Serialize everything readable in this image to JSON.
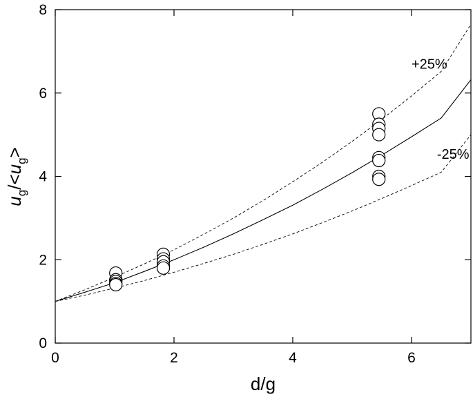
{
  "chart_data": {
    "type": "scatter",
    "title": "",
    "xlabel": "d/g",
    "ylabel": "u_g/<u_g>",
    "ylabel_parts": {
      "u1": "u",
      "sub1": "g",
      "mid": "/<",
      "u2": "u",
      "sub2": "g",
      "end": ">"
    },
    "xlim": [
      0,
      7
    ],
    "ylim": [
      0,
      8
    ],
    "xticks": [
      0,
      2,
      4,
      6
    ],
    "yticks": [
      0,
      2,
      4,
      6,
      8
    ],
    "grid": false,
    "legend": "none",
    "series": [
      {
        "marker": "open-circle",
        "points": [
          {
            "x": 1.02,
            "y": 1.68
          },
          {
            "x": 1.02,
            "y": 1.52
          },
          {
            "x": 1.02,
            "y": 1.48
          },
          {
            "x": 1.02,
            "y": 1.43
          },
          {
            "x": 1.02,
            "y": 1.4
          },
          {
            "x": 1.82,
            "y": 2.13
          },
          {
            "x": 1.82,
            "y": 2.02
          },
          {
            "x": 1.82,
            "y": 1.95
          },
          {
            "x": 1.82,
            "y": 1.85
          },
          {
            "x": 1.82,
            "y": 1.8
          },
          {
            "x": 5.45,
            "y": 5.5
          },
          {
            "x": 5.45,
            "y": 5.25
          },
          {
            "x": 5.45,
            "y": 5.15
          },
          {
            "x": 5.45,
            "y": 5.0
          },
          {
            "x": 5.45,
            "y": 4.45
          },
          {
            "x": 5.45,
            "y": 4.38
          },
          {
            "x": 5.45,
            "y": 4.0
          },
          {
            "x": 5.45,
            "y": 3.93
          }
        ]
      }
    ],
    "curves": [
      {
        "style": "solid",
        "x": [
          0,
          0.5,
          1,
          1.5,
          2,
          2.5,
          3,
          3.5,
          4,
          4.5,
          5,
          5.5,
          6,
          6.5,
          7
        ],
        "y": [
          1.0,
          1.22,
          1.45,
          1.72,
          2.0,
          2.3,
          2.62,
          2.96,
          3.31,
          3.69,
          4.09,
          4.51,
          4.95,
          5.4,
          6.32
        ]
      },
      {
        "style": "dashed",
        "x": [
          0,
          0.5,
          1,
          1.5,
          2,
          2.5,
          3,
          3.5,
          4,
          4.5,
          5,
          5.5,
          6,
          6.5,
          7
        ],
        "y": [
          1.0,
          1.28,
          1.58,
          1.9,
          2.24,
          2.61,
          3.0,
          3.42,
          3.87,
          4.34,
          4.84,
          5.37,
          5.93,
          6.52,
          7.65
        ]
      },
      {
        "style": "dashed",
        "x": [
          0,
          0.5,
          1,
          1.5,
          2,
          2.5,
          3,
          3.5,
          4,
          4.5,
          5,
          5.5,
          6,
          6.5,
          7
        ],
        "y": [
          1.0,
          1.15,
          1.32,
          1.5,
          1.7,
          1.91,
          2.13,
          2.37,
          2.62,
          2.89,
          3.17,
          3.47,
          3.78,
          4.1,
          5.0
        ]
      }
    ],
    "annotations": [
      {
        "text": "+25%",
        "x": 6.3,
        "y": 6.58
      },
      {
        "text": "-25%",
        "x": 6.7,
        "y": 4.42
      }
    ]
  }
}
